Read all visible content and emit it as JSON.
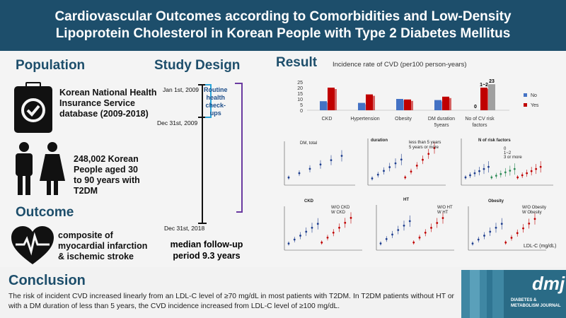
{
  "header": {
    "title_line1": "Cardiovascular Outcomes according to Comorbidities and Low-Density",
    "title_line2": "Lipoprotein Cholesterol in Korean People with Type 2 Diabetes Mellitus"
  },
  "population": {
    "title": "Population",
    "source_line1": "Korean National Health",
    "source_line2": "Insurance Service",
    "source_line3": "database (2009-2018)",
    "people_line1": "248,002 Korean",
    "people_line2": "People aged 30",
    "people_line3": "to 90 years with",
    "people_line4": "T2DM"
  },
  "outcome": {
    "title": "Outcome",
    "line1": "composite of",
    "line2": "myocardial infarction",
    "line3": "& ischemic stroke"
  },
  "study_design": {
    "title": "Study Design",
    "date1": "Jan 1st, 2009",
    "date2": "Dec 31st, 2009",
    "date3": "Dec 31st, 2018",
    "box_line1": "Routine",
    "box_line2": "health",
    "box_line3": "check-",
    "box_line4": "ups",
    "followup_line1": "median follow-up",
    "followup_line2": "period 9.3 years"
  },
  "result": {
    "title": "Result",
    "chart_title": "Incidence rate of CVD (per100 person-years)",
    "legend_no": "No",
    "legend_yes": "Yes",
    "small_labels": {
      "dm_total": "DM, total",
      "duration": "duration",
      "n_risk": "N of risk factors",
      "ckd": "CKD",
      "ht": "HT",
      "obesity": "Obesity",
      "ldl_axis": "LDL-C  (mg/dL)",
      "dur_l1": "less than 5 years",
      "dur_l2": "5 years or more",
      "ckd_l1": "W/O CKD",
      "ckd_l2": "W CKD",
      "ht_l1": "W/O HT",
      "ht_l2": "W HT",
      "ob_l1": "W/O Obesity",
      "ob_l2": "W Obesity",
      "nr_l1": "0",
      "nr_l2": "1~2",
      "nr_l3": "3 or more"
    }
  },
  "chart_data": {
    "type": "bar",
    "title": "Incidence rate of CVD (per100 person-years)",
    "categories": [
      "CKD",
      "Hypertension",
      "Obesity",
      "DM duration 5years",
      "No of CV risk factors"
    ],
    "series": [
      {
        "name": "No",
        "values": [
          8,
          6.5,
          10,
          9,
          0
        ],
        "color": "#4472c4"
      },
      {
        "name": "Yes",
        "values": [
          20,
          14,
          9.5,
          12,
          20
        ],
        "color": "#c00000"
      }
    ],
    "extra_bar_label": "23",
    "label_0": "0",
    "label_mid": "1~2",
    "yticks": [
      "0",
      "5",
      "10",
      "15",
      "20",
      "25"
    ],
    "ylim": [
      0,
      25
    ]
  },
  "conclusion": {
    "title": "Conclusion",
    "text": "The risk of incident CVD increased linearly from an LDL-C level of ≥70 mg/dL in most patients with T2DM. In T2DM patients without HT or with a DM duration of less than 5 years, the CVD incidence increased from LDL-C level of ≥100 mg/dL."
  },
  "logo": {
    "mark": "dmj",
    "line1": "DIABETES &",
    "line2": "METABOLISM JOURNAL"
  }
}
